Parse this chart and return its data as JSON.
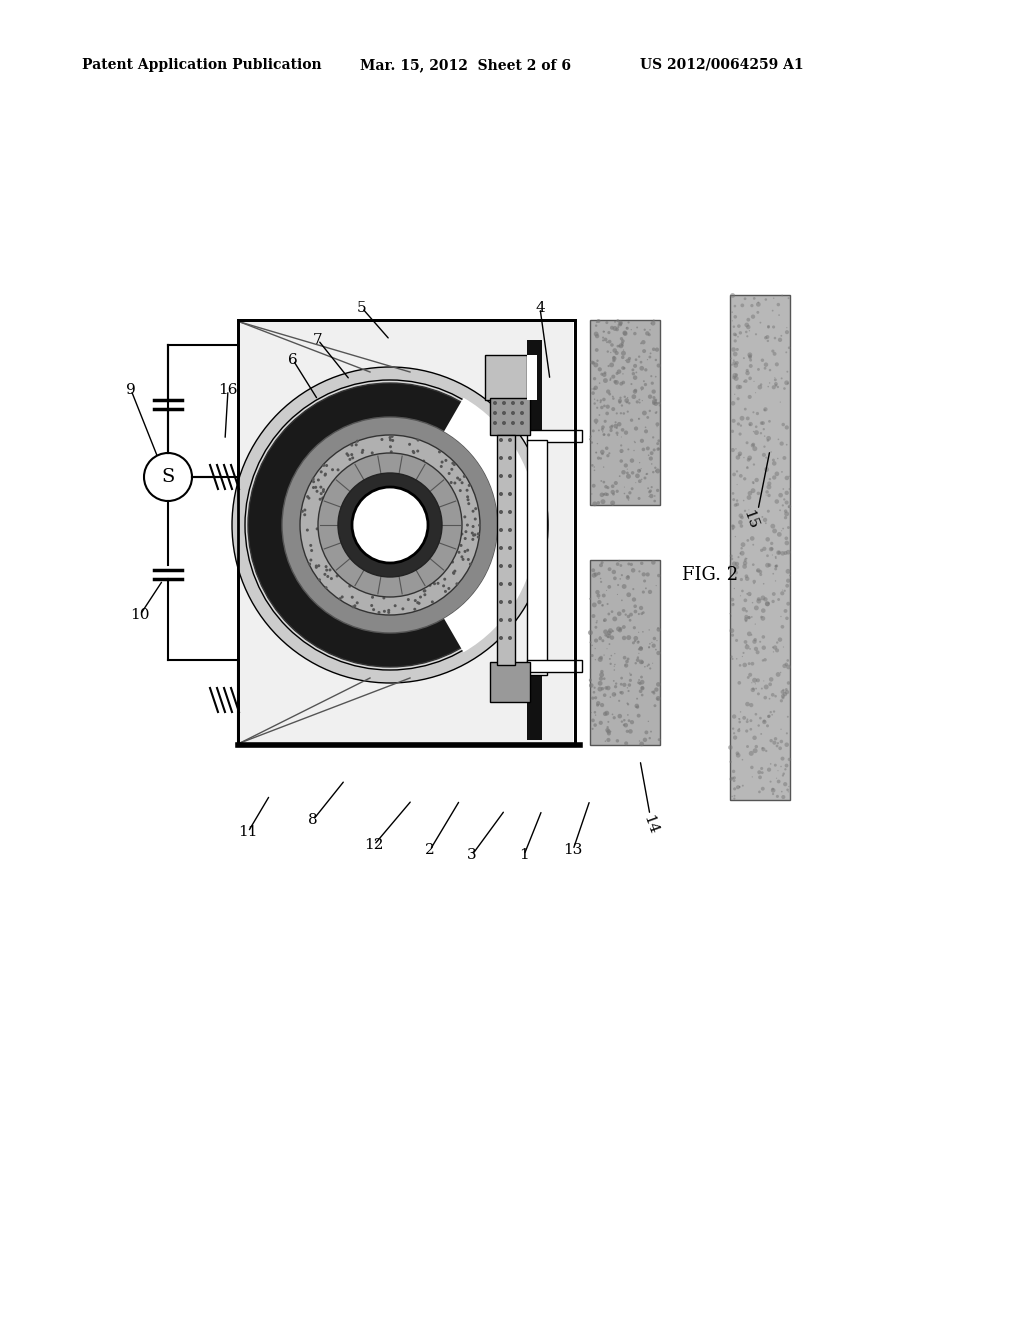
{
  "title_left": "Patent Application Publication",
  "title_mid": "Mar. 15, 2012  Sheet 2 of 6",
  "title_right": "US 2012/0064259 A1",
  "fig_label": "FIG. 2",
  "bg_color": "#ffffff",
  "lc": "#000000",
  "gray1": "#e0e0e0",
  "gray2": "#c0c0c0",
  "gray3": "#a0a0a0",
  "gray4": "#808080",
  "gray5": "#606060",
  "gray6": "#404040",
  "black": "#101010"
}
